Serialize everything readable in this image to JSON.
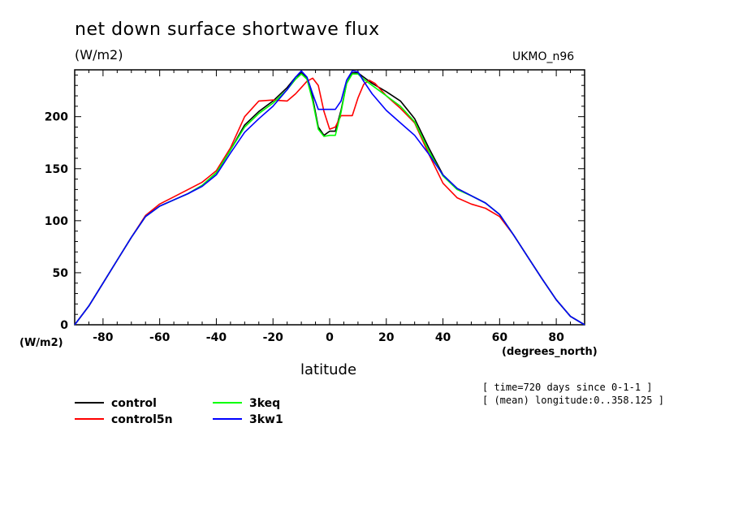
{
  "chart_data": {
    "type": "line",
    "title": "net down surface shortwave flux",
    "units": "(W/m2)",
    "model": "UKMO_n96",
    "ylabel_unit": "(W/m2)",
    "xlabel_unit": "(degrees_north)",
    "xlabel": "latitude",
    "meta": [
      "[ time=720 days since 0-1-1 ]",
      "[ (mean) longitude:0..358.125 ]"
    ],
    "xlim": [
      -90,
      90
    ],
    "ylim": [
      0,
      245
    ],
    "xticks": [
      -80,
      -60,
      -40,
      -20,
      0,
      20,
      40,
      60,
      80
    ],
    "xtick_labels": [
      "-80",
      "-60",
      "-40",
      "-20",
      "0",
      "20",
      "40",
      "60",
      "80"
    ],
    "yticks": [
      0,
      50,
      100,
      150,
      200
    ],
    "ytick_labels": [
      "0",
      "50",
      "100",
      "150",
      "200"
    ],
    "grid": false,
    "legend_position": "bottom-left",
    "series": [
      {
        "name": "control",
        "color": "#000000",
        "x": [
          -90,
          -85,
          -80,
          -75,
          -70,
          -65,
          -60,
          -55,
          -50,
          -45,
          -40,
          -35,
          -30,
          -25,
          -20,
          -15,
          -12,
          -10,
          -8,
          -6,
          -4,
          -2,
          0,
          2,
          4,
          6,
          8,
          10,
          12,
          15,
          20,
          25,
          30,
          35,
          40,
          45,
          50,
          55,
          60,
          65,
          70,
          75,
          80,
          85,
          90
        ],
        "y": [
          0,
          18,
          40,
          62,
          84,
          104,
          114,
          120,
          126,
          134,
          146,
          168,
          192,
          205,
          215,
          228,
          238,
          242,
          237,
          218,
          190,
          182,
          186,
          186,
          206,
          232,
          242,
          242,
          238,
          232,
          224,
          215,
          198,
          170,
          144,
          131,
          124,
          117,
          106,
          86,
          65,
          44,
          24,
          8,
          0
        ]
      },
      {
        "name": "control5n",
        "color": "#ff0000",
        "x": [
          -90,
          -85,
          -80,
          -75,
          -70,
          -65,
          -60,
          -55,
          -50,
          -45,
          -40,
          -35,
          -30,
          -25,
          -20,
          -15,
          -12,
          -10,
          -8,
          -6,
          -4,
          -2,
          0,
          2,
          4,
          6,
          8,
          10,
          12,
          14,
          16,
          20,
          25,
          30,
          35,
          40,
          45,
          50,
          55,
          60,
          65,
          70,
          75,
          80,
          85,
          90
        ],
        "y": [
          0,
          18,
          40,
          62,
          84,
          105,
          116,
          123,
          130,
          137,
          148,
          170,
          200,
          215,
          216,
          215,
          222,
          228,
          234,
          237,
          230,
          205,
          188,
          190,
          201,
          201,
          201,
          218,
          231,
          235,
          232,
          220,
          208,
          194,
          164,
          136,
          122,
          116,
          112,
          104,
          86,
          65,
          44,
          24,
          8,
          0
        ]
      },
      {
        "name": "3keq",
        "color": "#00ff00",
        "x": [
          -90,
          -85,
          -80,
          -75,
          -70,
          -65,
          -60,
          -55,
          -50,
          -45,
          -40,
          -35,
          -30,
          -25,
          -20,
          -15,
          -12,
          -10,
          -8,
          -6,
          -4,
          -2,
          0,
          2,
          4,
          6,
          8,
          10,
          12,
          15,
          20,
          25,
          30,
          35,
          40,
          45,
          50,
          55,
          60,
          65,
          70,
          75,
          80,
          85,
          90
        ],
        "y": [
          0,
          18,
          40,
          62,
          84,
          104,
          114,
          120,
          126,
          134,
          146,
          168,
          190,
          203,
          213,
          226,
          236,
          241,
          236,
          215,
          188,
          181,
          182,
          182,
          204,
          232,
          241,
          241,
          236,
          230,
          220,
          210,
          195,
          167,
          143,
          130,
          124,
          117,
          106,
          86,
          65,
          44,
          24,
          8,
          0
        ]
      },
      {
        "name": "3kw1",
        "color": "#0000ff",
        "x": [
          -90,
          -85,
          -80,
          -75,
          -70,
          -65,
          -60,
          -55,
          -50,
          -45,
          -40,
          -35,
          -30,
          -25,
          -20,
          -15,
          -12,
          -10,
          -8,
          -6,
          -4,
          -2,
          0,
          2,
          4,
          6,
          8,
          10,
          12,
          15,
          20,
          25,
          30,
          35,
          40,
          45,
          50,
          55,
          60,
          65,
          70,
          75,
          80,
          85,
          90
        ],
        "y": [
          0,
          18,
          40,
          62,
          84,
          104,
          114,
          120,
          126,
          133,
          144,
          165,
          185,
          198,
          210,
          226,
          238,
          244,
          238,
          222,
          207,
          207,
          207,
          207,
          215,
          235,
          244,
          243,
          234,
          222,
          206,
          194,
          182,
          164,
          144,
          131,
          124,
          117,
          106,
          86,
          65,
          44,
          24,
          8,
          0
        ]
      }
    ]
  }
}
